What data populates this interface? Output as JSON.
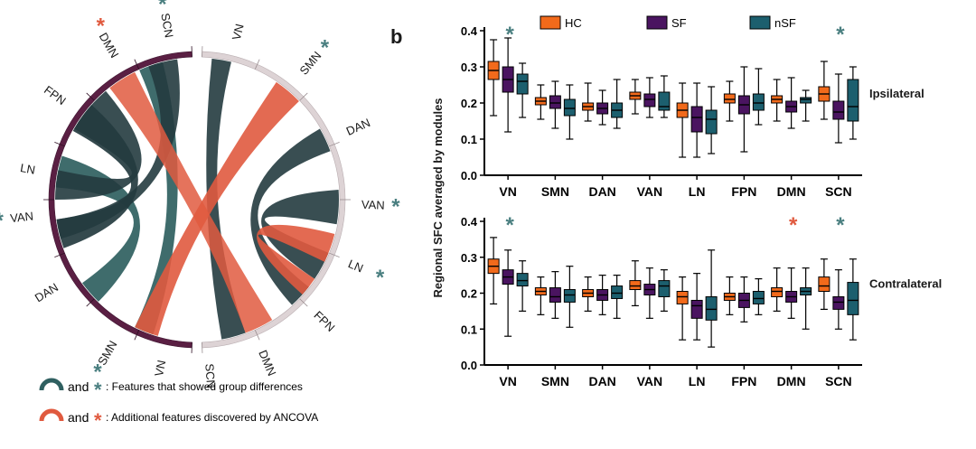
{
  "panel_label": "b",
  "colors": {
    "hc": "#f26a1b",
    "sf": "#4a1460",
    "nsf": "#1c5f6e",
    "teal": "#2f5f60",
    "teal_dark": "#243b3f",
    "red": "#e05a3f",
    "left_arc": "#5a1f43",
    "right_arc": "#ddd3d5",
    "star_teal": "#4a7f80",
    "star_red": "#e05a3f"
  },
  "chord": {
    "left_nodes": [
      "DMN",
      "FPN",
      "LN",
      "VAN",
      "DAN",
      "SMN",
      "VN",
      "SCN"
    ],
    "right_nodes": [
      "VN",
      "SMN",
      "DAN",
      "VAN",
      "LN",
      "FPN",
      "DMN",
      "SCN"
    ],
    "starred_teal": [
      "SCN-left",
      "VAN-left",
      "SMN-left",
      "SMN-right",
      "VAN-right",
      "LN-right"
    ],
    "starred_red": [
      "DMN-left"
    ],
    "star_symbol": "*"
  },
  "footnotes": [
    {
      "icon": "teal-arc-icon",
      "star": "*",
      "and": "and",
      "text": ": Features that showed group differences"
    },
    {
      "icon": "red-arc-icon",
      "star": "*",
      "and": "and",
      "text": ": Additional features discovered by ANCOVA"
    }
  ],
  "chart_data": {
    "type": "box",
    "ylabel": "Regional SFC averaged by modules",
    "categories": [
      "VN",
      "SMN",
      "DAN",
      "VAN",
      "LN",
      "FPN",
      "DMN",
      "SCN"
    ],
    "yticks": [
      "0.0",
      "0.1",
      "0.2",
      "0.3",
      "0.4"
    ],
    "ylim": [
      0,
      0.4
    ],
    "legend": [
      "HC",
      "SF",
      "nSF"
    ],
    "legend_position": "top",
    "panels": [
      {
        "title": "Ipsilateral",
        "stars": [
          {
            "category": "VN",
            "color": "teal"
          },
          {
            "category": "SCN",
            "color": "teal"
          }
        ],
        "groups": {
          "HC": [
            [
              0.165,
              0.265,
              0.29,
              0.315,
              0.375
            ],
            [
              0.155,
              0.195,
              0.205,
              0.215,
              0.25
            ],
            [
              0.15,
              0.18,
              0.19,
              0.2,
              0.255
            ],
            [
              0.17,
              0.21,
              0.22,
              0.23,
              0.265
            ],
            [
              0.05,
              0.16,
              0.18,
              0.2,
              0.255
            ],
            [
              0.15,
              0.2,
              0.21,
              0.225,
              0.26
            ],
            [
              0.15,
              0.2,
              0.21,
              0.22,
              0.265
            ],
            [
              0.155,
              0.205,
              0.225,
              0.245,
              0.315
            ]
          ],
          "SF": [
            [
              0.12,
              0.23,
              0.265,
              0.3,
              0.38
            ],
            [
              0.13,
              0.185,
              0.2,
              0.22,
              0.26
            ],
            [
              0.14,
              0.17,
              0.185,
              0.2,
              0.235
            ],
            [
              0.16,
              0.19,
              0.21,
              0.225,
              0.27
            ],
            [
              0.05,
              0.12,
              0.16,
              0.19,
              0.255
            ],
            [
              0.065,
              0.17,
              0.195,
              0.22,
              0.3
            ],
            [
              0.13,
              0.175,
              0.19,
              0.205,
              0.27
            ],
            [
              0.09,
              0.155,
              0.175,
              0.205,
              0.28
            ]
          ],
          "nSF": [
            [
              0.16,
              0.225,
              0.26,
              0.28,
              0.31
            ],
            [
              0.1,
              0.165,
              0.185,
              0.21,
              0.25
            ],
            [
              0.13,
              0.16,
              0.18,
              0.2,
              0.265
            ],
            [
              0.16,
              0.18,
              0.19,
              0.23,
              0.275
            ],
            [
              0.06,
              0.115,
              0.155,
              0.18,
              0.245
            ],
            [
              0.14,
              0.18,
              0.2,
              0.225,
              0.295
            ],
            [
              0.15,
              0.2,
              0.21,
              0.215,
              0.235
            ],
            [
              0.1,
              0.15,
              0.19,
              0.265,
              0.3
            ]
          ]
        }
      },
      {
        "title": "Contralateral",
        "stars": [
          {
            "category": "VN",
            "color": "teal"
          },
          {
            "category": "DMN",
            "color": "red"
          },
          {
            "category": "SCN",
            "color": "teal"
          }
        ],
        "groups": {
          "HC": [
            [
              0.17,
              0.255,
              0.275,
              0.295,
              0.355
            ],
            [
              0.14,
              0.195,
              0.205,
              0.215,
              0.245
            ],
            [
              0.15,
              0.19,
              0.2,
              0.21,
              0.245
            ],
            [
              0.165,
              0.21,
              0.22,
              0.235,
              0.29
            ],
            [
              0.07,
              0.17,
              0.19,
              0.205,
              0.245
            ],
            [
              0.14,
              0.18,
              0.19,
              0.2,
              0.245
            ],
            [
              0.15,
              0.19,
              0.205,
              0.215,
              0.27
            ],
            [
              0.155,
              0.205,
              0.22,
              0.245,
              0.295
            ]
          ],
          "SF": [
            [
              0.08,
              0.225,
              0.245,
              0.265,
              0.32
            ],
            [
              0.13,
              0.175,
              0.19,
              0.215,
              0.26
            ],
            [
              0.14,
              0.18,
              0.195,
              0.21,
              0.25
            ],
            [
              0.13,
              0.195,
              0.21,
              0.225,
              0.27
            ],
            [
              0.07,
              0.13,
              0.165,
              0.18,
              0.255
            ],
            [
              0.12,
              0.16,
              0.18,
              0.2,
              0.245
            ],
            [
              0.13,
              0.175,
              0.19,
              0.205,
              0.27
            ],
            [
              0.1,
              0.155,
              0.175,
              0.19,
              0.265
            ]
          ],
          "nSF": [
            [
              0.15,
              0.22,
              0.235,
              0.255,
              0.29
            ],
            [
              0.105,
              0.175,
              0.195,
              0.21,
              0.275
            ],
            [
              0.13,
              0.185,
              0.2,
              0.22,
              0.25
            ],
            [
              0.15,
              0.19,
              0.22,
              0.235,
              0.265
            ],
            [
              0.05,
              0.125,
              0.155,
              0.19,
              0.32
            ],
            [
              0.14,
              0.17,
              0.185,
              0.205,
              0.24
            ],
            [
              0.1,
              0.195,
              0.205,
              0.215,
              0.27
            ],
            [
              0.07,
              0.14,
              0.18,
              0.23,
              0.295
            ]
          ]
        }
      }
    ]
  }
}
